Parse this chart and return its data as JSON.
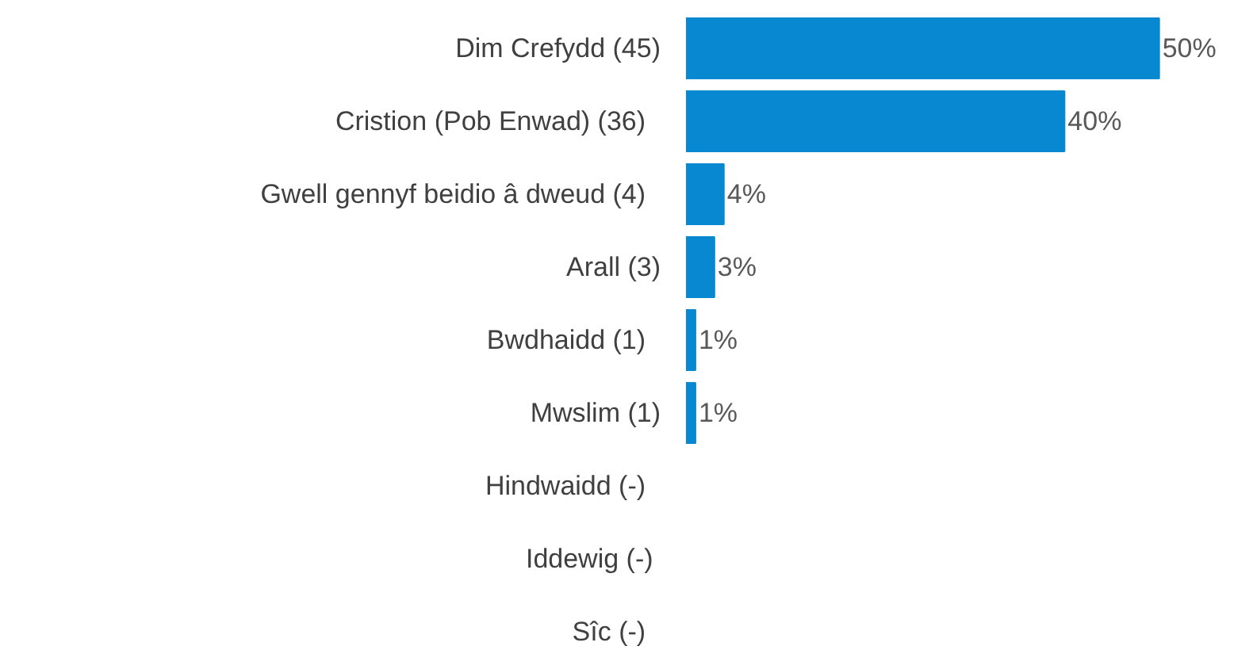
{
  "chart_data": {
    "type": "bar",
    "orientation": "horizontal",
    "categories": [
      "Dim Crefydd (45)",
      "Cristion (Pob Enwad)   (36)",
      "Gwell gennyf beidio â dweud   (4)",
      "Arall (3)",
      "Bwdhaidd   (1)",
      "Mwslim (1)",
      "Hindwaidd   (-)",
      "Iddewig  (-)",
      "Sîc   (-)"
    ],
    "values": [
      50,
      40,
      4,
      3,
      1,
      1,
      null,
      null,
      null
    ],
    "value_labels": [
      "50%",
      "40%",
      "4%",
      "3%",
      "1%",
      "1%",
      null,
      null,
      null
    ],
    "color": "#0788d1"
  }
}
